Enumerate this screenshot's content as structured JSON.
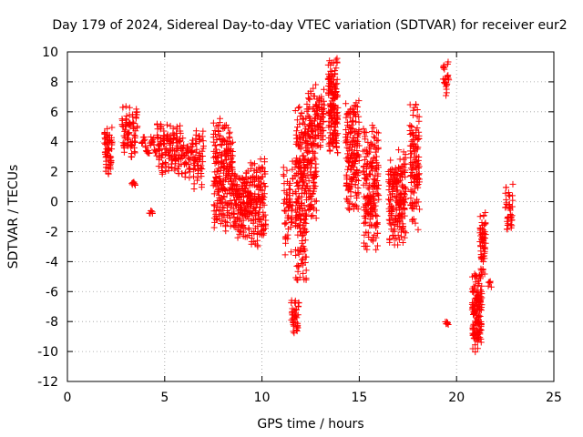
{
  "chart_data": {
    "type": "scatter",
    "title": "Day 179 of 2024, Sidereal Day-to-day VTEC variation (SDTVAR) for receiver eur2",
    "xlabel": "GPS time / hours",
    "ylabel": "SDTVAR / TECUs",
    "xlim": [
      0,
      25
    ],
    "ylim": [
      -12,
      10
    ],
    "xticks": [
      0,
      5,
      10,
      15,
      20,
      25
    ],
    "yticks": [
      -12,
      -10,
      -8,
      -6,
      -4,
      -2,
      0,
      2,
      4,
      6,
      8,
      10
    ],
    "grid": true,
    "marker": "+",
    "color": "#ff0000",
    "segments": [
      {
        "x0": 1.9,
        "x1": 2.3,
        "ymin": 1.5,
        "ymax": 5.0,
        "n": 60
      },
      {
        "x0": 2.8,
        "x1": 3.6,
        "ymin": 2.8,
        "ymax": 6.5,
        "n": 80
      },
      {
        "x0": 3.3,
        "x1": 3.5,
        "ymin": 0.8,
        "ymax": 1.4,
        "n": 8
      },
      {
        "x0": 3.8,
        "x1": 4.6,
        "ymin": 3.0,
        "ymax": 4.4,
        "n": 30
      },
      {
        "x0": 4.2,
        "x1": 4.4,
        "ymin": -1.0,
        "ymax": -0.6,
        "n": 6
      },
      {
        "x0": 4.6,
        "x1": 5.9,
        "ymin": 1.8,
        "ymax": 5.3,
        "n": 140
      },
      {
        "x0": 5.9,
        "x1": 6.4,
        "ymin": 1.5,
        "ymax": 4.5,
        "n": 40
      },
      {
        "x0": 6.4,
        "x1": 7.0,
        "ymin": 0.8,
        "ymax": 5.0,
        "n": 60
      },
      {
        "x0": 7.5,
        "x1": 8.5,
        "ymin": -2.0,
        "ymax": 5.6,
        "n": 220
      },
      {
        "x0": 8.5,
        "x1": 9.4,
        "ymin": -2.5,
        "ymax": 2.3,
        "n": 170
      },
      {
        "x0": 9.4,
        "x1": 10.2,
        "ymin": -3.1,
        "ymax": 3.0,
        "n": 140
      },
      {
        "x0": 11.1,
        "x1": 11.6,
        "ymin": -3.6,
        "ymax": 2.8,
        "n": 60
      },
      {
        "x0": 11.5,
        "x1": 11.9,
        "ymin": -9.0,
        "ymax": -6.5,
        "n": 40
      },
      {
        "x0": 11.7,
        "x1": 12.3,
        "ymin": -6.0,
        "ymax": 6.5,
        "n": 200
      },
      {
        "x0": 12.3,
        "x1": 12.8,
        "ymin": -1.5,
        "ymax": 8.1,
        "n": 140
      },
      {
        "x0": 12.8,
        "x1": 13.2,
        "ymin": 3.5,
        "ymax": 7.5,
        "n": 60
      },
      {
        "x0": 13.4,
        "x1": 13.9,
        "ymin": 3.2,
        "ymax": 9.6,
        "n": 160
      },
      {
        "x0": 14.3,
        "x1": 15.0,
        "ymin": -0.8,
        "ymax": 7.0,
        "n": 170
      },
      {
        "x0": 15.2,
        "x1": 16.0,
        "ymin": -3.5,
        "ymax": 5.2,
        "n": 190
      },
      {
        "x0": 16.5,
        "x1": 17.4,
        "ymin": -3.2,
        "ymax": 3.5,
        "n": 190
      },
      {
        "x0": 17.6,
        "x1": 18.1,
        "ymin": -2.0,
        "ymax": 6.9,
        "n": 120
      },
      {
        "x0": 19.3,
        "x1": 19.6,
        "ymin": 7.0,
        "ymax": 9.4,
        "n": 25
      },
      {
        "x0": 19.4,
        "x1": 19.6,
        "ymin": -8.4,
        "ymax": -8.0,
        "n": 6
      },
      {
        "x0": 20.8,
        "x1": 21.3,
        "ymin": -10.1,
        "ymax": -4.5,
        "n": 150
      },
      {
        "x0": 21.2,
        "x1": 21.5,
        "ymin": -5.0,
        "ymax": -0.3,
        "n": 60
      },
      {
        "x0": 21.6,
        "x1": 21.8,
        "ymin": -6.0,
        "ymax": -5.3,
        "n": 6
      },
      {
        "x0": 22.5,
        "x1": 22.9,
        "ymin": -2.4,
        "ymax": 1.2,
        "n": 40
      }
    ]
  }
}
